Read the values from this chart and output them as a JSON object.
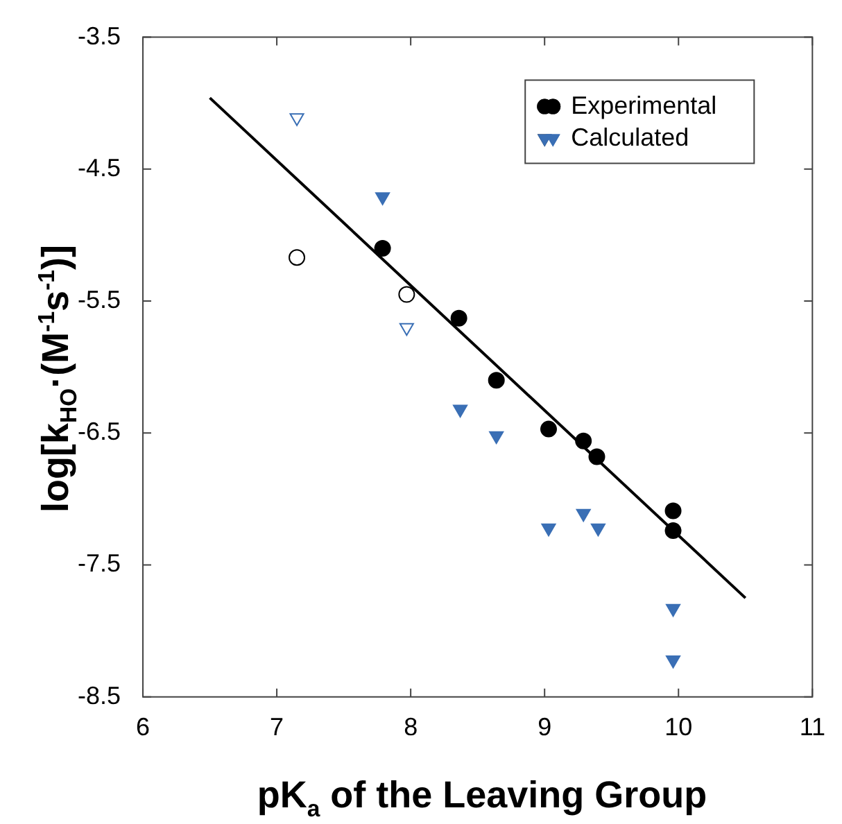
{
  "chart_data": {
    "type": "scatter",
    "xlabel": "pK$_{a}$ of the Leaving Group",
    "ylabel": "log[k$_{HO}$·(M$^{-1}$s$^{-1}$)]",
    "xlim": [
      6,
      11
    ],
    "xticks": [
      6,
      7,
      8,
      9,
      10,
      11
    ],
    "ylim": [
      -8.5,
      -3.5
    ],
    "yticks": [
      -8.5,
      -7.5,
      -6.5,
      -5.5,
      -4.5,
      -3.5
    ],
    "grid": false,
    "legend": "top right",
    "series": [
      {
        "name": "Experimental",
        "color": "#000000",
        "marker": "circle",
        "x": [
          7.79,
          8.36,
          8.64,
          9.03,
          9.29,
          9.39,
          9.96,
          9.96
        ],
        "values": [
          -5.1,
          -5.63,
          -6.1,
          -6.47,
          -6.56,
          -6.68,
          -7.09,
          -7.24
        ]
      },
      {
        "name": "Calculated",
        "color": "#3a6fb5",
        "marker": "triangle",
        "x": [
          7.79,
          8.37,
          8.64,
          9.03,
          9.29,
          9.4,
          9.96,
          9.96
        ],
        "values": [
          -4.71,
          -6.32,
          -6.52,
          -7.22,
          -7.11,
          -7.22,
          -7.83,
          -8.22
        ]
      },
      {
        "color": "#000000",
        "marker": "circle",
        "x": [
          7.15,
          7.97
        ],
        "values": [
          -5.17,
          -5.45
        ]
      },
      {
        "color": "#3a6fb5",
        "marker": "triangle",
        "x": [
          7.15,
          7.97
        ],
        "values": [
          -4.11,
          -5.7
        ]
      },
      {
        "type": "line",
        "color": "#000000",
        "marker": "none",
        "x": [
          6.5,
          10.5
        ],
        "values": [
          -3.96,
          -7.75
        ]
      }
    ]
  }
}
